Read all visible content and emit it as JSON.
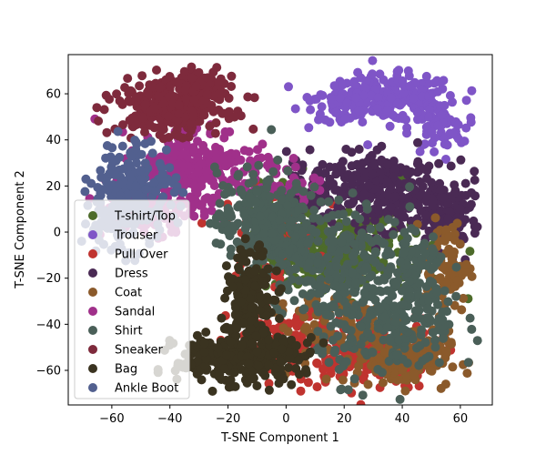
{
  "chart_data": {
    "type": "scatter",
    "title": "",
    "xlabel": "T-SNE Component 1",
    "ylabel": "T-SNE Component 2",
    "xlim": [
      -75,
      71
    ],
    "ylim": [
      -75,
      77
    ],
    "xticks": [
      -60,
      -40,
      -20,
      0,
      20,
      40,
      60
    ],
    "yticks": [
      -60,
      -40,
      -20,
      0,
      20,
      40,
      60
    ],
    "grid": false,
    "legend_position": "lower-left",
    "series": [
      {
        "name": "T-shirt/Top",
        "color": "#4d6b2a",
        "clusters": [
          {
            "cx": 12,
            "cy": -10,
            "sx": 10,
            "sy": 9,
            "n": 170
          },
          {
            "cx": 30,
            "cy": -5,
            "sx": 12,
            "sy": 12,
            "n": 90
          },
          {
            "cx": 0,
            "cy": 10,
            "sx": 6,
            "sy": 8,
            "n": 40
          }
        ]
      },
      {
        "name": "Trouser",
        "color": "#7f55c7",
        "clusters": [
          {
            "cx": 35,
            "cy": 58,
            "sx": 12,
            "sy": 5,
            "n": 240
          },
          {
            "cx": 52,
            "cy": 45,
            "sx": 5,
            "sy": 6,
            "n": 60
          },
          {
            "cx": 22,
            "cy": 55,
            "sx": 6,
            "sy": 4,
            "n": 50
          }
        ]
      },
      {
        "name": "Pull Over",
        "color": "#c0332f",
        "clusters": [
          {
            "cx": 28,
            "cy": -52,
            "sx": 12,
            "sy": 8,
            "n": 200
          },
          {
            "cx": 0,
            "cy": -48,
            "sx": 10,
            "sy": 8,
            "n": 90
          },
          {
            "cx": -5,
            "cy": 0,
            "sx": 8,
            "sy": 10,
            "n": 60
          }
        ]
      },
      {
        "name": "Dress",
        "color": "#4a2a54",
        "clusters": [
          {
            "cx": 35,
            "cy": 18,
            "sx": 9,
            "sy": 8,
            "n": 230
          },
          {
            "cx": 55,
            "cy": 8,
            "sx": 6,
            "sy": 8,
            "n": 110
          },
          {
            "cx": 12,
            "cy": 20,
            "sx": 8,
            "sy": 6,
            "n": 80
          }
        ]
      },
      {
        "name": "Coat",
        "color": "#8b5a2b",
        "clusters": [
          {
            "cx": 40,
            "cy": -55,
            "sx": 8,
            "sy": 6,
            "n": 160
          },
          {
            "cx": 55,
            "cy": -15,
            "sx": 4,
            "sy": 10,
            "n": 90
          },
          {
            "cx": 20,
            "cy": -40,
            "sx": 12,
            "sy": 10,
            "n": 90
          }
        ]
      },
      {
        "name": "Sandal",
        "color": "#a0308a",
        "clusters": [
          {
            "cx": -32,
            "cy": 28,
            "sx": 10,
            "sy": 10,
            "n": 230
          },
          {
            "cx": -48,
            "cy": 12,
            "sx": 8,
            "sy": 8,
            "n": 90
          },
          {
            "cx": -5,
            "cy": 22,
            "sx": 8,
            "sy": 6,
            "n": 50
          }
        ]
      },
      {
        "name": "Shirt",
        "color": "#4a5f58",
        "clusters": [
          {
            "cx": -8,
            "cy": 5,
            "sx": 8,
            "sy": 11,
            "n": 270
          },
          {
            "cx": 15,
            "cy": -10,
            "sx": 12,
            "sy": 12,
            "n": 210
          },
          {
            "cx": 35,
            "cy": -40,
            "sx": 12,
            "sy": 12,
            "n": 230
          },
          {
            "cx": 45,
            "cy": -20,
            "sx": 6,
            "sy": 12,
            "n": 90
          }
        ]
      },
      {
        "name": "Sneaker",
        "color": "#7e2a3c",
        "clusters": [
          {
            "cx": -40,
            "cy": 55,
            "sx": 9,
            "sy": 6,
            "n": 300
          },
          {
            "cx": -28,
            "cy": 62,
            "sx": 4,
            "sy": 4,
            "n": 80
          }
        ]
      },
      {
        "name": "Bag",
        "color": "#3a3320",
        "clusters": [
          {
            "cx": -22,
            "cy": -55,
            "sx": 8,
            "sy": 5,
            "n": 230
          },
          {
            "cx": -12,
            "cy": -30,
            "sx": 4,
            "sy": 11,
            "n": 160
          },
          {
            "cx": -2,
            "cy": -55,
            "sx": 6,
            "sy": 5,
            "n": 70
          }
        ]
      },
      {
        "name": "Ankle Boot",
        "color": "#52608f",
        "clusters": [
          {
            "cx": -52,
            "cy": 20,
            "sx": 7,
            "sy": 10,
            "n": 180
          },
          {
            "cx": -60,
            "cy": 5,
            "sx": 5,
            "sy": 8,
            "n": 60
          }
        ]
      }
    ]
  }
}
